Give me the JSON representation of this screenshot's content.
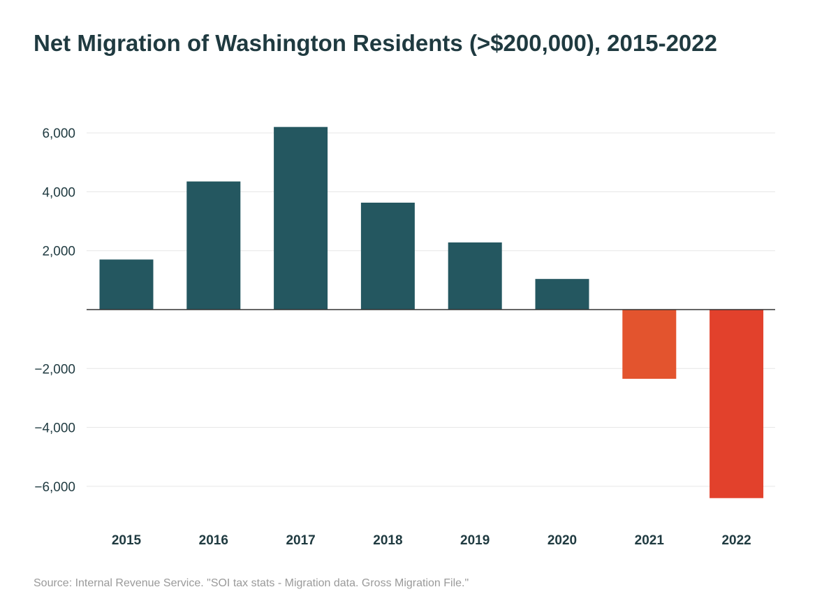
{
  "chart_data": {
    "type": "bar",
    "title": "Net Migration of Washington Residents (>$200,000), 2015-2022",
    "categories": [
      "2015",
      "2016",
      "2017",
      "2018",
      "2019",
      "2020",
      "2021",
      "2022"
    ],
    "values": [
      1700,
      4350,
      6200,
      3630,
      2280,
      1040,
      -2350,
      -6400
    ],
    "ylim": [
      -6500,
      6500
    ],
    "yticks": [
      6000,
      4000,
      2000,
      -2000,
      -4000,
      -6000
    ],
    "ytick_labels": [
      "6,000",
      "4,000",
      "2,000",
      "−2,000",
      "−4,000",
      "−6,000"
    ],
    "xlabel": "",
    "ylabel": "",
    "grid": true,
    "colors": {
      "positive": "#245760",
      "2021": "#e3542e",
      "2022": "#e2412c",
      "grid": "#e6e6e6",
      "axis": "#333333"
    },
    "source": "Source: Internal Revenue Service. \"SOI tax stats - Migration data. Gross Migration File.\""
  }
}
